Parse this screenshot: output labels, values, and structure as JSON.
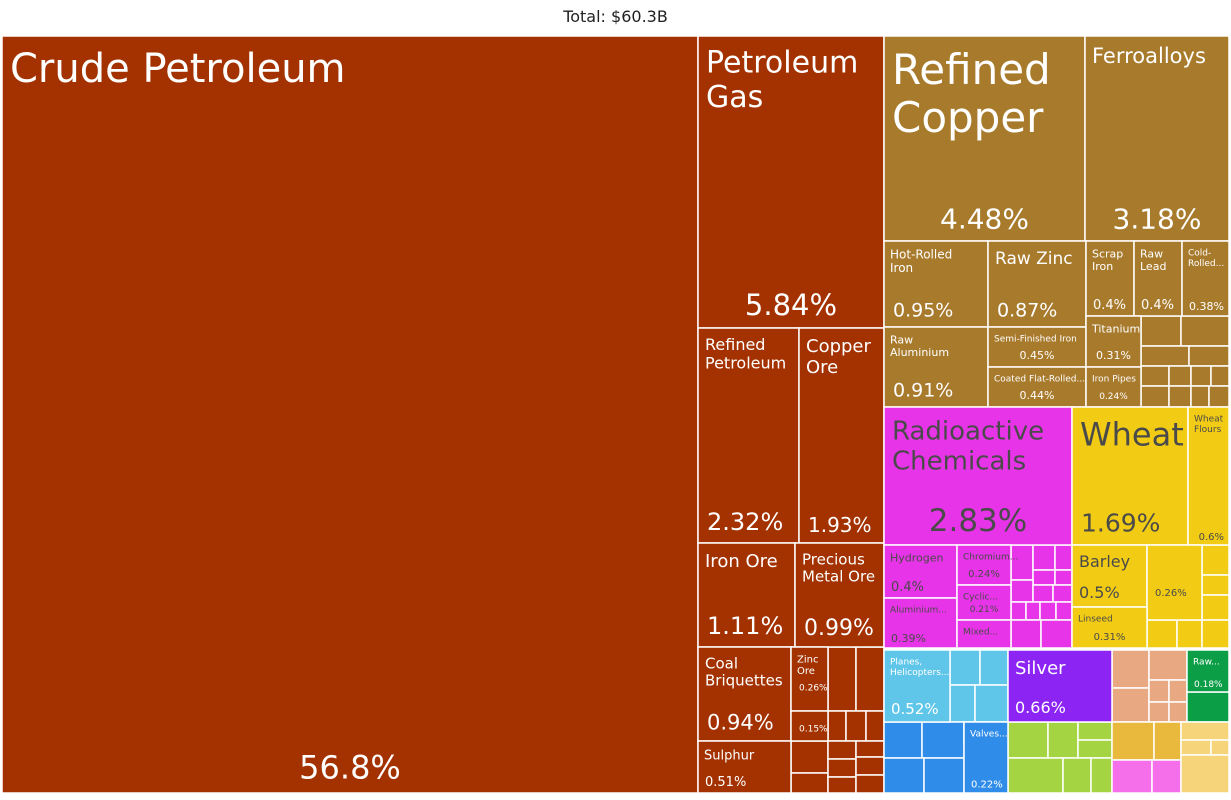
{
  "chart_data": {
    "type": "treemap",
    "title": "Total: $60.3B",
    "unit": "percent of total exports",
    "colors": {
      "mineral": "#a33200",
      "metal": "#a87a2c",
      "chemical": "#e834e8",
      "vegetable": "#f2cc14",
      "machine": "#5fc6ea",
      "precious": "#8c24f4",
      "animal": "#a4d442",
      "food": "#e8a882",
      "textile": "#0c9e47",
      "transport": "#2f8de9",
      "wood": "#e9b93d",
      "plastic": "#f46fe9",
      "misc": "#f6d47a"
    },
    "items": [
      {
        "name": "Crude Petroleum",
        "value": 56.8,
        "label": "56.8%",
        "group": "mineral"
      },
      {
        "name": "Petroleum Gas",
        "value": 5.84,
        "label": "5.84%",
        "group": "mineral"
      },
      {
        "name": "Refined Petroleum",
        "value": 2.32,
        "label": "2.32%",
        "group": "mineral"
      },
      {
        "name": "Copper Ore",
        "value": 1.93,
        "label": "1.93%",
        "group": "mineral"
      },
      {
        "name": "Iron Ore",
        "value": 1.11,
        "label": "1.11%",
        "group": "mineral"
      },
      {
        "name": "Precious Metal Ore",
        "value": 0.99,
        "label": "0.99%",
        "group": "mineral"
      },
      {
        "name": "Coal Briquettes",
        "value": 0.94,
        "label": "0.94%",
        "group": "mineral"
      },
      {
        "name": "Sulphur",
        "value": 0.51,
        "label": "0.51%",
        "group": "mineral"
      },
      {
        "name": "Zinc Ore",
        "value": 0.26,
        "label": "0.26%",
        "group": "mineral"
      },
      {
        "name": "",
        "value": 0.15,
        "label": "0.15%",
        "group": "mineral"
      },
      {
        "name": "Refined Copper",
        "value": 4.48,
        "label": "4.48%",
        "group": "metal"
      },
      {
        "name": "Ferroalloys",
        "value": 3.18,
        "label": "3.18%",
        "group": "metal"
      },
      {
        "name": "Hot-Rolled Iron",
        "value": 0.95,
        "label": "0.95%",
        "group": "metal"
      },
      {
        "name": "Raw Zinc",
        "value": 0.87,
        "label": "0.87%",
        "group": "metal"
      },
      {
        "name": "Raw Aluminium",
        "value": 0.91,
        "label": "0.91%",
        "group": "metal"
      },
      {
        "name": "Semi-Finished Iron",
        "value": 0.45,
        "label": "0.45%",
        "group": "metal"
      },
      {
        "name": "Coated Flat-Rolled...",
        "value": 0.44,
        "label": "0.44%",
        "group": "metal"
      },
      {
        "name": "Scrap Iron",
        "value": 0.4,
        "label": "0.4%",
        "group": "metal"
      },
      {
        "name": "Raw Lead",
        "value": 0.4,
        "label": "0.4%",
        "group": "metal"
      },
      {
        "name": "Cold-Rolled...",
        "value": 0.38,
        "label": "0.38%",
        "group": "metal"
      },
      {
        "name": "Titanium",
        "value": 0.31,
        "label": "0.31%",
        "group": "metal"
      },
      {
        "name": "Iron Pipes",
        "value": 0.24,
        "label": "0.24%",
        "group": "metal"
      },
      {
        "name": "Radioactive Chemicals",
        "value": 2.83,
        "label": "2.83%",
        "group": "chemical"
      },
      {
        "name": "Hydrogen",
        "value": 0.4,
        "label": "0.4%",
        "group": "chemical"
      },
      {
        "name": "Chromium...",
        "value": 0.24,
        "label": "0.24%",
        "group": "chemical"
      },
      {
        "name": "Aluminium...",
        "value": 0.39,
        "label": "0.39%",
        "group": "chemical"
      },
      {
        "name": "Cyclic...",
        "value": 0.21,
        "label": "0.21%",
        "group": "chemical"
      },
      {
        "name": "Mixed...",
        "value": 0,
        "label": "",
        "group": "chemical"
      },
      {
        "name": "Wheat",
        "value": 1.69,
        "label": "1.69%",
        "group": "vegetable"
      },
      {
        "name": "Wheat Flours",
        "value": 0.6,
        "label": "0.6%",
        "group": "vegetable"
      },
      {
        "name": "Barley",
        "value": 0.5,
        "label": "0.5%",
        "group": "vegetable"
      },
      {
        "name": "",
        "value": 0.26,
        "label": "0.26%",
        "group": "vegetable"
      },
      {
        "name": "Linseed",
        "value": 0.31,
        "label": "0.31%",
        "group": "vegetable"
      },
      {
        "name": "Planes, Helicopters...",
        "value": 0.52,
        "label": "0.52%",
        "group": "machine"
      },
      {
        "name": "Silver",
        "value": 0.66,
        "label": "0.66%",
        "group": "precious"
      },
      {
        "name": "Valves...",
        "value": 0.22,
        "label": "0.22%",
        "group": "transport"
      },
      {
        "name": "Raw...",
        "value": 0.18,
        "label": "0.18%",
        "group": "textile"
      }
    ]
  }
}
